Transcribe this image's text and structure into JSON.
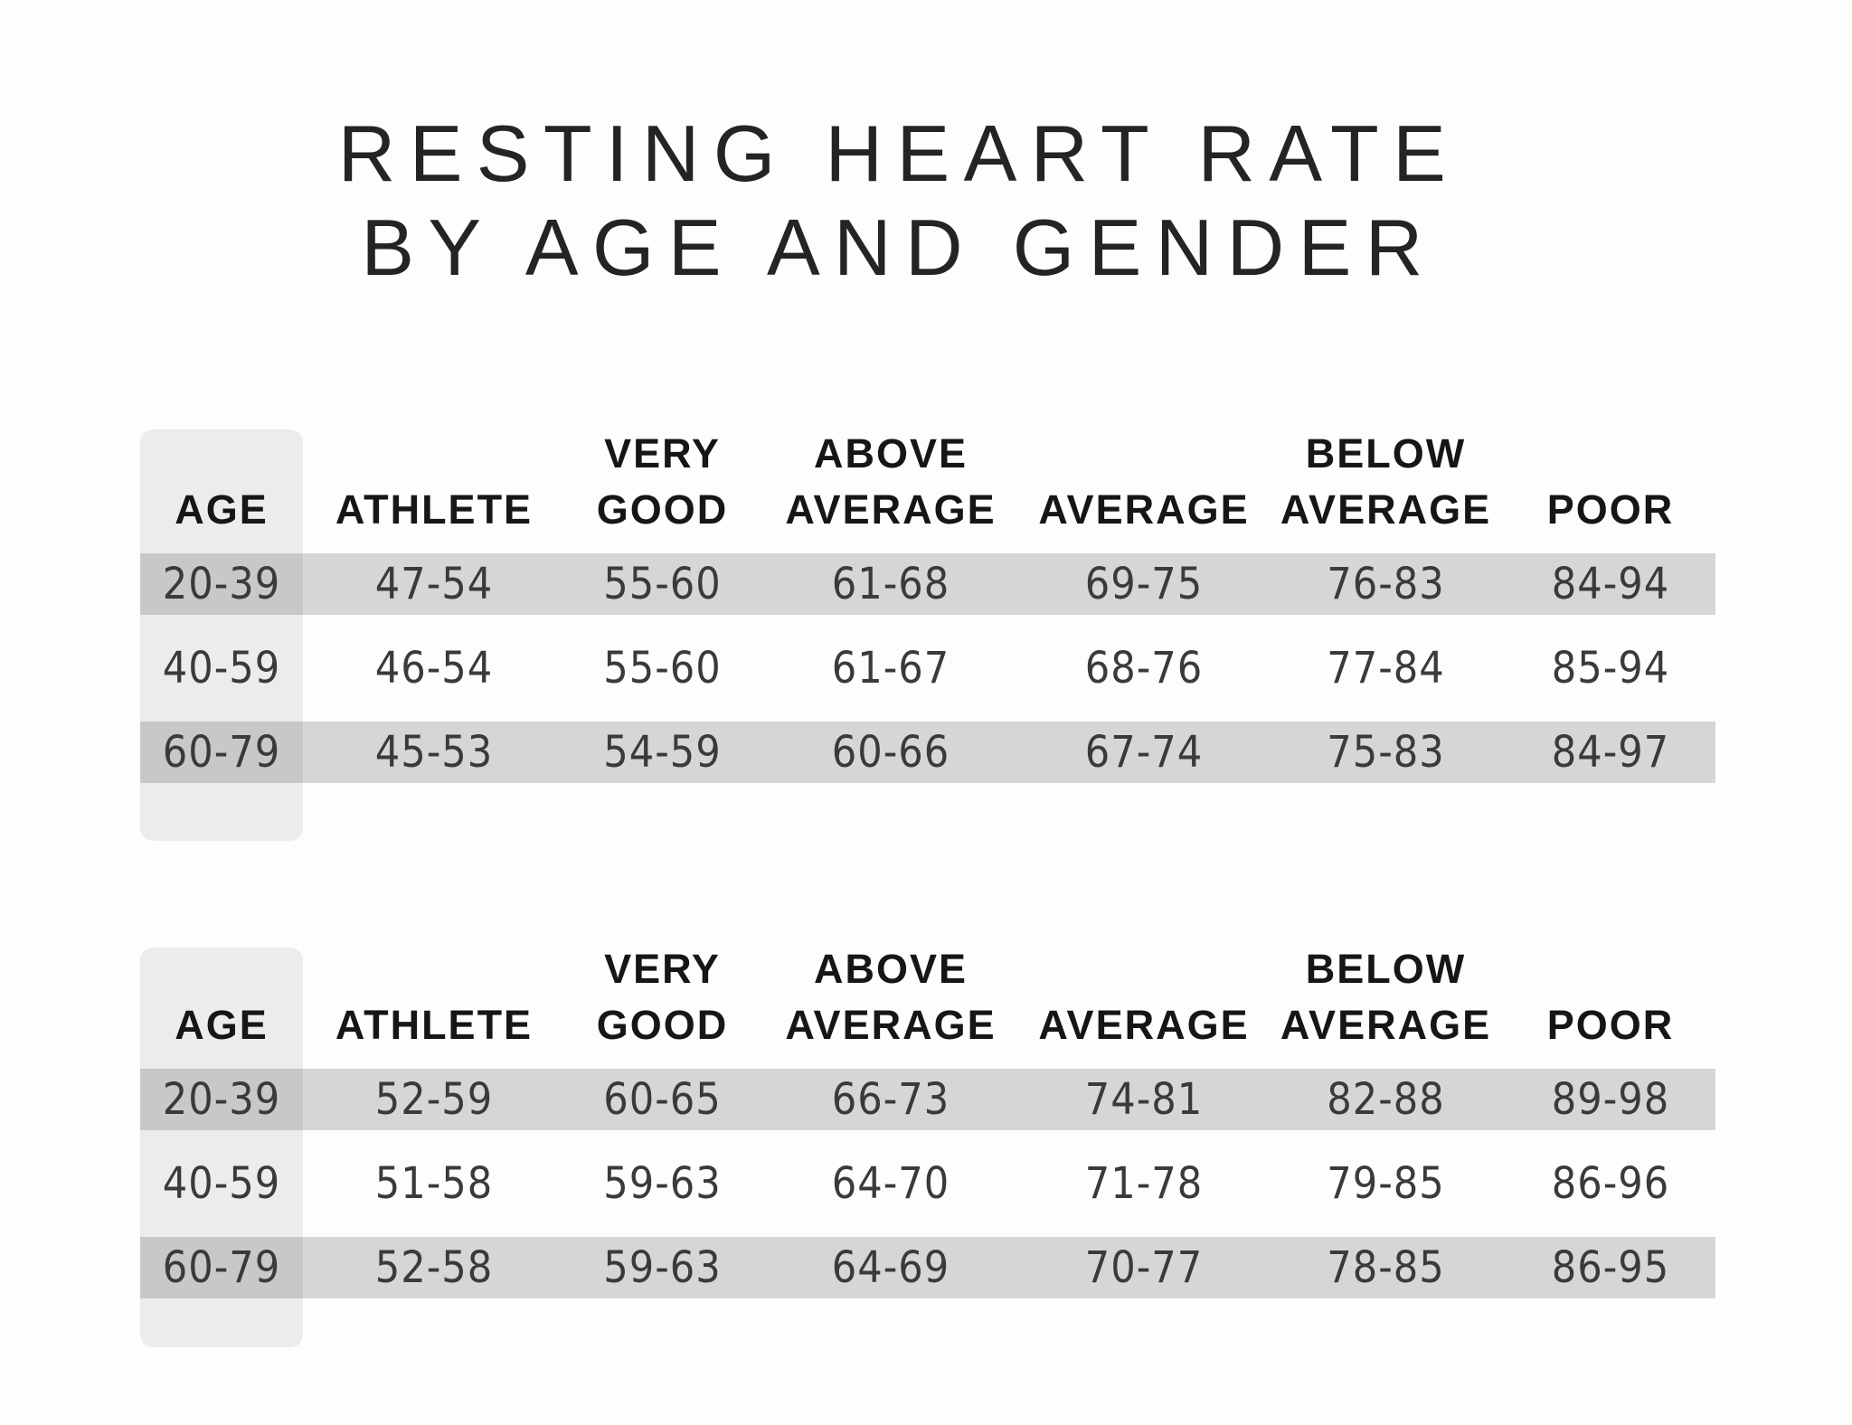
{
  "title": {
    "line1": "RESTING HEART RATE",
    "line2": "BY AGE AND GENDER"
  },
  "header_display": [
    {
      "line1": "",
      "line2": "AGE"
    },
    {
      "line1": "",
      "line2": "ATHLETE"
    },
    {
      "line1": "VERY",
      "line2": "GOOD"
    },
    {
      "line1": "ABOVE",
      "line2": "AVERAGE"
    },
    {
      "line1": "",
      "line2": "AVERAGE"
    },
    {
      "line1": "BELOW",
      "line2": "AVERAGE"
    },
    {
      "line1": "",
      "line2": "POOR"
    }
  ],
  "chart_data": {
    "type": "table",
    "title": "RESTING HEART RATE BY AGE AND GENDER",
    "columns": [
      "AGE",
      "ATHLETE",
      "VERY GOOD",
      "ABOVE AVERAGE",
      "AVERAGE",
      "BELOW AVERAGE",
      "POOR"
    ],
    "tables": [
      {
        "rows": [
          [
            "20-39",
            "47-54",
            "55-60",
            "61-68",
            "69-75",
            "76-83",
            "84-94"
          ],
          [
            "40-59",
            "46-54",
            "55-60",
            "61-67",
            "68-76",
            "77-84",
            "85-94"
          ],
          [
            "60-79",
            "45-53",
            "54-59",
            "60-66",
            "67-74",
            "75-83",
            "84-97"
          ]
        ]
      },
      {
        "rows": [
          [
            "20-39",
            "52-59",
            "60-65",
            "66-73",
            "74-81",
            "82-88",
            "89-98"
          ],
          [
            "40-59",
            "51-58",
            "59-63",
            "64-70",
            "71-78",
            "79-85",
            "86-96"
          ],
          [
            "60-79",
            "52-58",
            "59-63",
            "64-69",
            "70-77",
            "78-85",
            "86-95"
          ]
        ]
      }
    ]
  },
  "colors": {
    "row_stripe": "#d3d3d3",
    "age_column_bg": "#ececec",
    "title_text": "#242424",
    "header_text": "#161616",
    "data_text": "#3a3a3a",
    "background": "#fdfdfd"
  }
}
